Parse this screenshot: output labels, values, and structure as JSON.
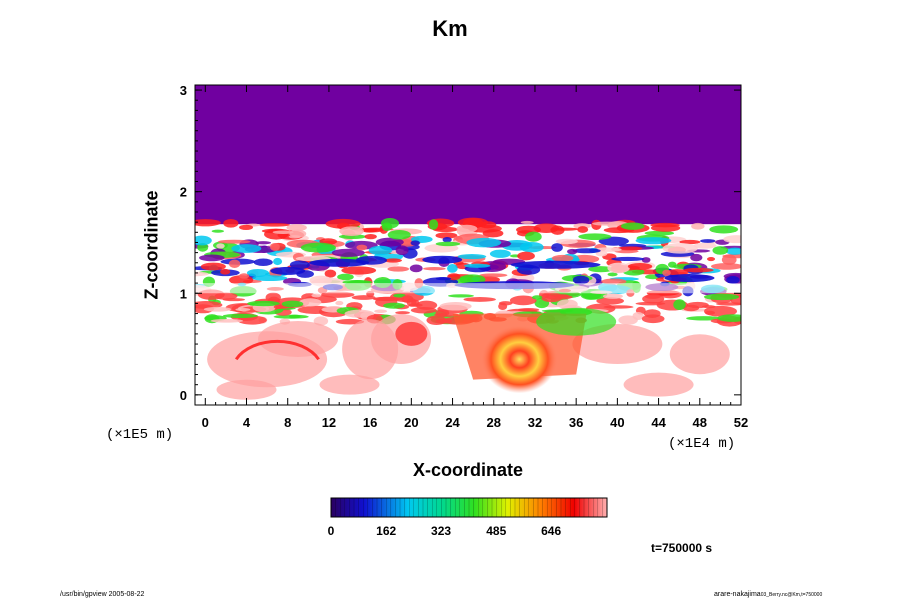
{
  "chart_data": {
    "type": "heatmap",
    "title": "Km",
    "xlabel": "X-coordinate",
    "ylabel": "Z-coordinate",
    "x_scale_label": "(×1E4 m)",
    "z_scale_label": "(×1E5 m)",
    "xlim": [
      -1,
      52
    ],
    "ylim": [
      -0.1,
      3.05
    ],
    "x_ticks": [
      "0",
      "4",
      "8",
      "12",
      "16",
      "20",
      "24",
      "28",
      "32",
      "36",
      "40",
      "44",
      "48",
      "52"
    ],
    "y_ticks": [
      "0",
      "1",
      "2",
      "3"
    ],
    "colorbar": {
      "range": [
        0,
        810
      ],
      "ticks": [
        "0",
        "162",
        "323",
        "485",
        "646"
      ],
      "colormap": "rainbow"
    },
    "time_label": "t=750000 s",
    "colors": {
      "background_upper": "#7000a0",
      "low": "#ffffff",
      "mid": "#ff2020",
      "high": "#22e838"
    }
  },
  "footer": {
    "left": "/usr/bin/gpview 2005-08-22",
    "right_main": "arare-nakajima",
    "right_sub": "03_Berry.nc@Km,t=750000"
  }
}
